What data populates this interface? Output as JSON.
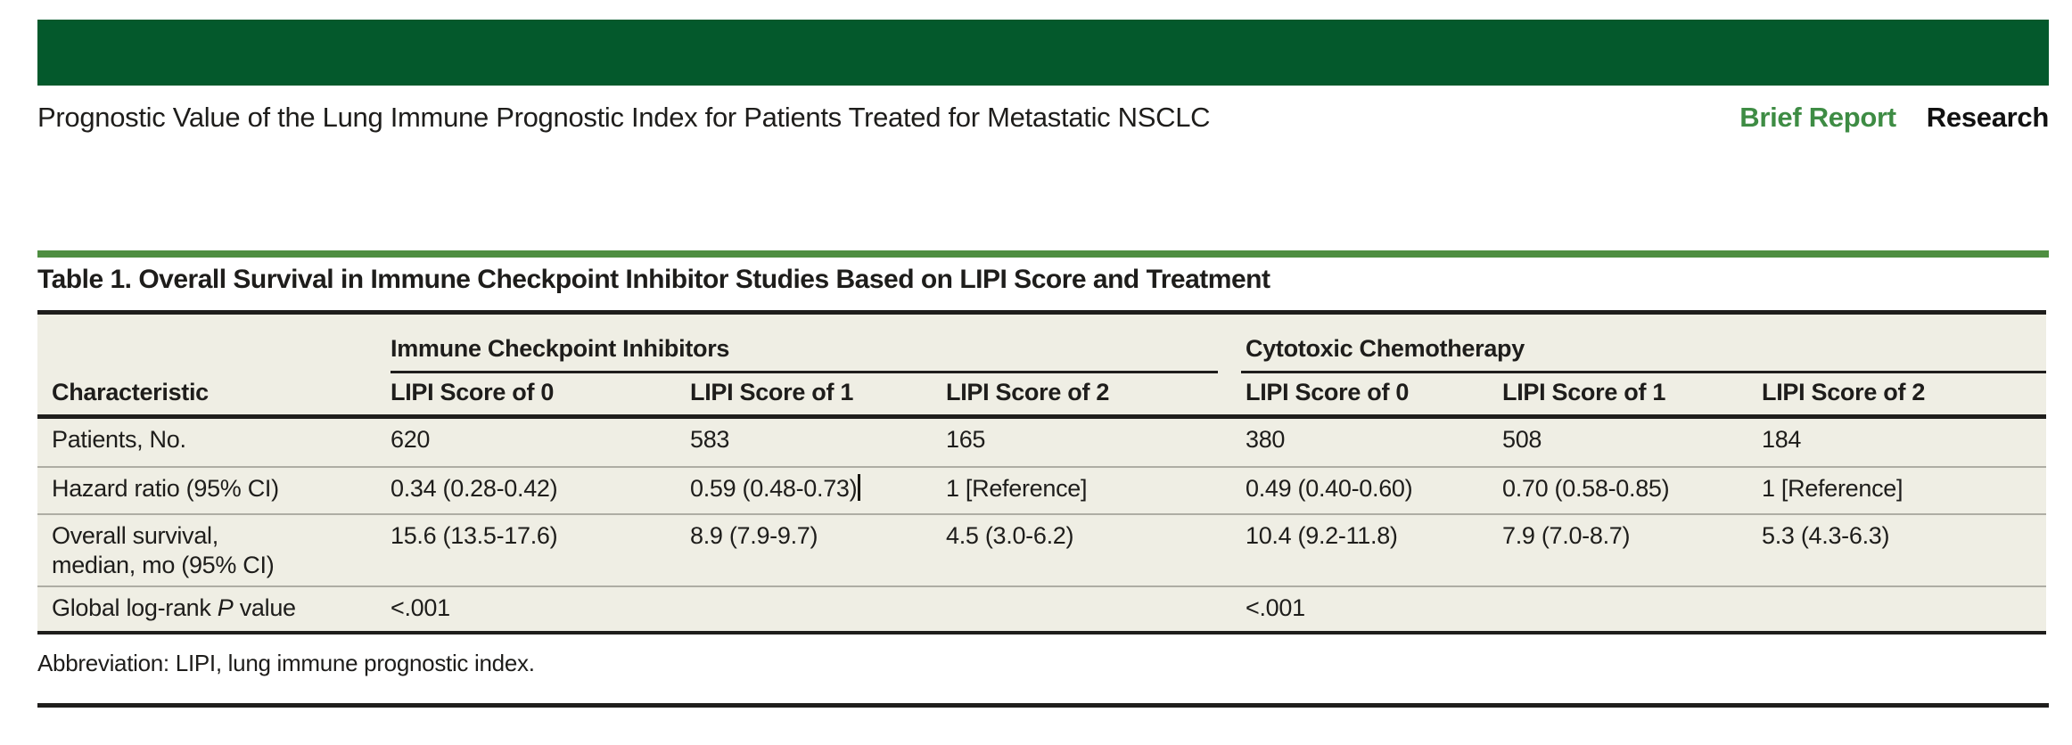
{
  "header": {
    "running_title": "Prognostic Value of the Lung Immune Prognostic Index for Patients Treated for Metastatic NSCLC",
    "article_type": "Brief Report",
    "section": "Research"
  },
  "colors": {
    "banner_green": "#04592c",
    "accent_green": "#4e8e41",
    "brief_report_green": "#3e8c44",
    "table_background": "#efeee4",
    "rule_black": "#1f1e1c"
  },
  "table": {
    "title": "Table 1. Overall Survival in Immune Checkpoint Inhibitor Studies Based on LIPI Score and Treatment",
    "row_header": "Characteristic",
    "groups": [
      {
        "label": "Immune Checkpoint Inhibitors",
        "columns": [
          "LIPI Score of 0",
          "LIPI Score of 1",
          "LIPI Score of 2"
        ]
      },
      {
        "label": "Cytotoxic Chemotherapy",
        "columns": [
          "LIPI Score of 0",
          "LIPI Score of 1",
          "LIPI Score of 2"
        ]
      }
    ],
    "rows": [
      {
        "label": "Patients, No.",
        "values": [
          "620",
          "583",
          "165",
          "380",
          "508",
          "184"
        ]
      },
      {
        "label": "Hazard ratio (95% CI)",
        "values": [
          "0.34 (0.28-0.42)",
          "0.59 (0.48-0.73)",
          "1 [Reference]",
          "0.49 (0.40-0.60)",
          "0.70 (0.58-0.85)",
          "1 [Reference]"
        ]
      },
      {
        "label": "Overall survival,",
        "label_line2": "median, mo (95% CI)",
        "values": [
          "15.6 (13.5-17.6)",
          "8.9 (7.9-9.7)",
          "4.5 (3.0-6.2)",
          "10.4 (9.2-11.8)",
          "7.9 (7.0-8.7)",
          "5.3 (4.3-6.3)"
        ]
      },
      {
        "label_prefix": "Global log-rank ",
        "label_italic": "P",
        "label_suffix": " value",
        "values": [
          "<.001",
          "",
          "",
          "<.001",
          "",
          ""
        ]
      }
    ],
    "footnote": "Abbreviation: LIPI, lung immune prognostic index."
  }
}
